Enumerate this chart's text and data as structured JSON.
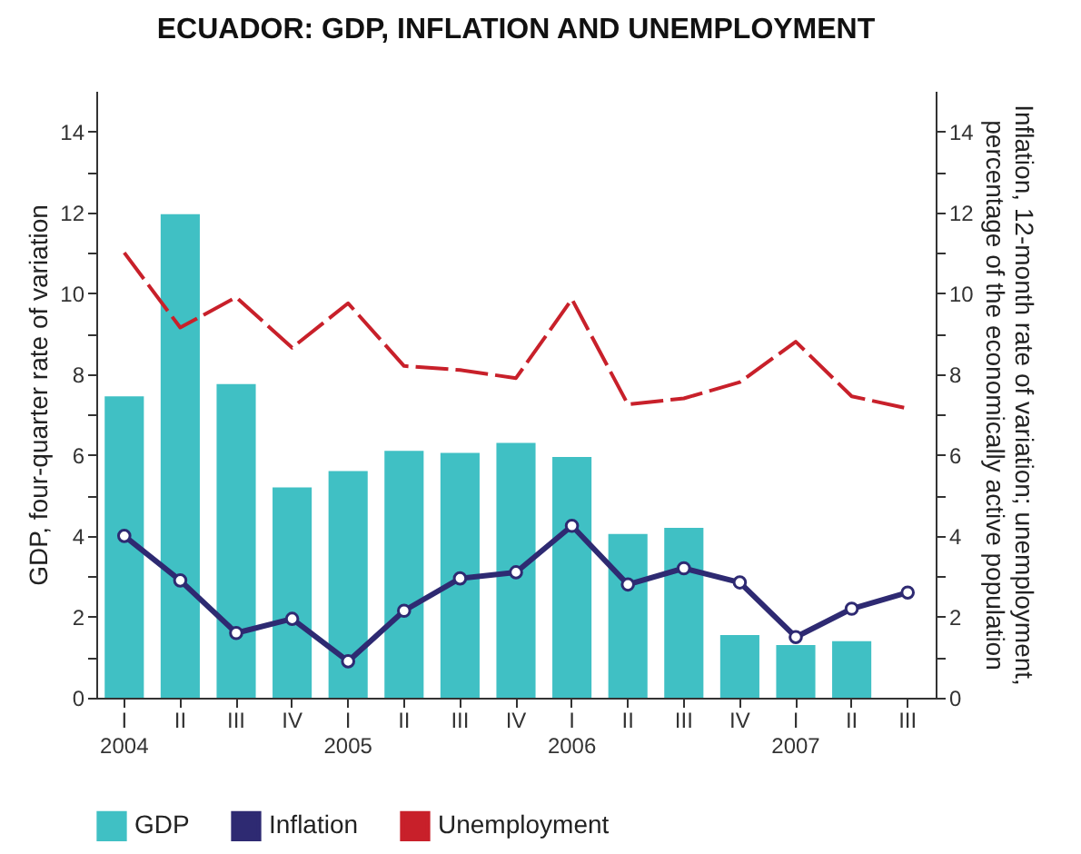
{
  "chart_data": {
    "type": "bar",
    "title": "ECUADOR: GDP, INFLATION AND UNEMPLOYMENT",
    "ylabel": "GDP, four-quarter rate of variation",
    "y2label": "Inflation, 12-month rate of variation; unemployment,\npercentage of the economically active population",
    "categories": [
      "I\n2004",
      "II",
      "III",
      "IV",
      "I\n2005",
      "II",
      "III",
      "IV",
      "I\n2006",
      "II",
      "III",
      "IV",
      "I\n2007",
      "II",
      "III"
    ],
    "series": [
      {
        "name": "GDP",
        "color": "#40c0c4",
        "values": [
          7.45,
          11.95,
          7.75,
          5.2,
          5.6,
          6.1,
          6.05,
          6.3,
          5.95,
          4.05,
          4.2,
          1.55,
          1.3,
          1.4,
          null
        ]
      },
      {
        "name": "Inflation",
        "type": "line",
        "axis": "y2",
        "color": "#2e2a72",
        "marker": "circle",
        "line_style": "solid",
        "values": [
          4.0,
          2.9,
          1.6,
          1.95,
          0.9,
          2.15,
          2.95,
          3.1,
          4.25,
          2.8,
          3.2,
          2.85,
          1.5,
          2.2,
          2.6
        ]
      },
      {
        "name": "Unemployment",
        "type": "line",
        "axis": "y2",
        "color": "#c8202a",
        "marker": "none",
        "line_style": "dashed",
        "values": [
          11.0,
          9.15,
          9.9,
          8.65,
          9.75,
          8.2,
          8.1,
          7.9,
          9.85,
          7.25,
          7.4,
          7.8,
          8.8,
          7.45,
          7.15
        ]
      }
    ],
    "ylim": [
      0,
      15
    ],
    "yticks": [
      0,
      {
        "value": 1,
        "label": null
      },
      2,
      {
        "value": 3,
        "label": null
      },
      4,
      {
        "value": 5,
        "label": null
      },
      6,
      {
        "value": 7,
        "label": null
      },
      8,
      {
        "value": 9,
        "label": null
      },
      10,
      {
        "value": 11,
        "label": null
      },
      12,
      {
        "value": 13,
        "label": null
      },
      14
    ],
    "y2lim": [
      0,
      15
    ],
    "y2ticks": [
      0,
      {
        "value": 1,
        "label": null
      },
      2,
      {
        "value": 3,
        "label": null
      },
      4,
      {
        "value": 5,
        "label": null
      },
      6,
      {
        "value": 7,
        "label": null
      },
      8,
      {
        "value": 9,
        "label": null
      },
      10,
      {
        "value": 11,
        "label": null
      },
      12,
      {
        "value": 13,
        "label": null
      },
      14
    ],
    "grid": false,
    "legend": "bottom"
  }
}
